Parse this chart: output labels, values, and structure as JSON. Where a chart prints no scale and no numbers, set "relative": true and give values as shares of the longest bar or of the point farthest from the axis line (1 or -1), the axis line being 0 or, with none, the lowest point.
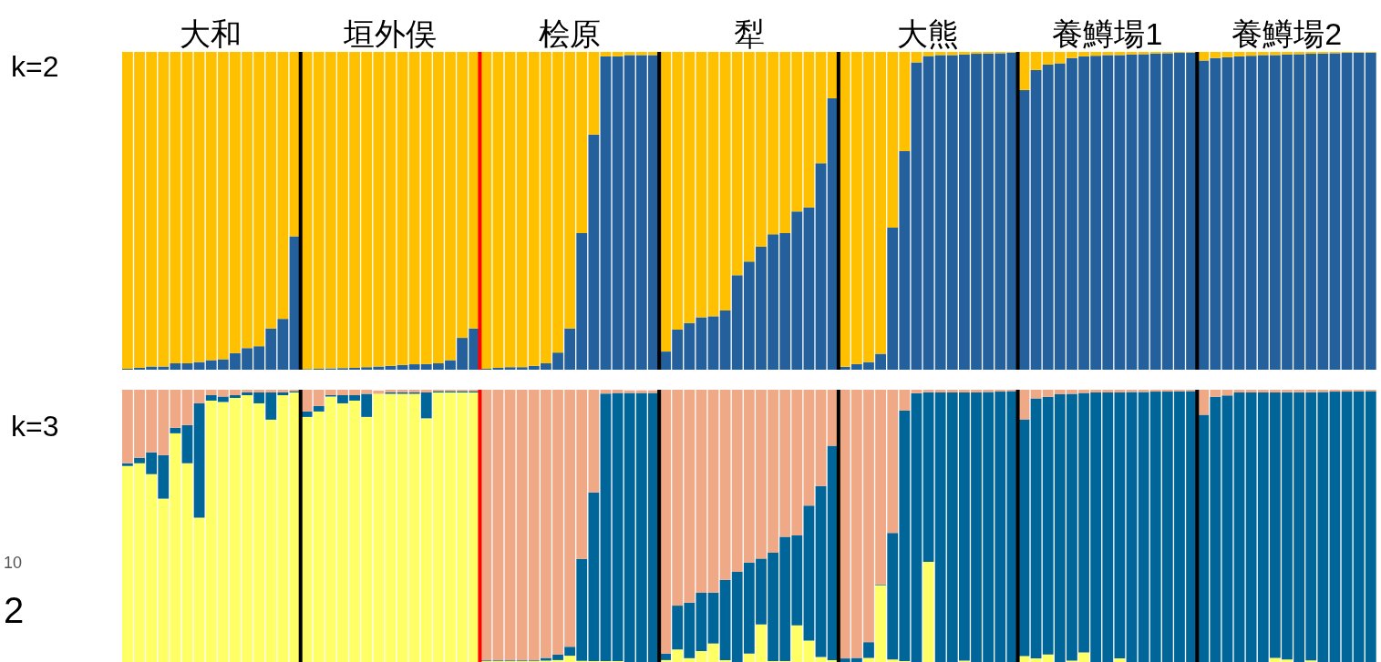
{
  "chart_data": [
    {
      "type": "bar",
      "title": "k=2",
      "stacked": true,
      "relative": true,
      "categories": [
        null,
        null,
        null,
        null,
        null,
        null,
        null,
        "大和",
        null,
        null,
        null,
        null,
        null,
        null,
        null,
        null,
        null,
        null,
        null,
        null,
        null,
        null,
        "垣外俣",
        null,
        null,
        null,
        null,
        null,
        null,
        null,
        null,
        null,
        null,
        null,
        null,
        null,
        null,
        "桧原",
        null,
        null,
        null,
        null,
        null,
        null,
        null,
        null,
        null,
        null,
        null,
        null,
        null,
        null,
        "犁",
        null,
        null,
        null,
        null,
        null,
        null,
        null,
        null,
        null,
        null,
        null,
        null,
        null,
        null,
        "大熊",
        null,
        null,
        null,
        null,
        null,
        null,
        null,
        null,
        null,
        null,
        null,
        null,
        null,
        null,
        "養鱒場1",
        null,
        null,
        null,
        null,
        null,
        null,
        null,
        null,
        null,
        null,
        null,
        null,
        null,
        null,
        "養鱒場2",
        null,
        null,
        null,
        null,
        null,
        null,
        null
      ],
      "series": [
        {
          "color": "#23609c",
          "values": [
            0.003,
            0.006,
            0.01,
            0.01,
            0.02,
            0.02,
            0.024,
            0.03,
            0.033,
            0.052,
            0.068,
            0.074,
            0.13,
            0.16,
            0.42,
            0.002,
            0.003,
            0.004,
            0.005,
            0.006,
            0.008,
            0.01,
            0.012,
            0.015,
            0.017,
            0.018,
            0.02,
            0.03,
            0.1,
            0.13,
            0.003,
            0.006,
            0.008,
            0.008,
            0.012,
            0.02,
            0.054,
            0.13,
            0.43,
            0.74,
            0.986,
            0.986,
            0.99,
            0.99,
            0.99,
            0.057,
            0.126,
            0.147,
            0.165,
            0.168,
            0.186,
            0.297,
            0.34,
            0.387,
            0.426,
            0.43,
            0.498,
            0.511,
            0.65,
            0.854,
            0.009,
            0.018,
            0.024,
            0.05,
            0.447,
            0.688,
            0.967,
            0.987,
            0.99,
            0.99,
            0.992,
            0.994,
            0.995,
            0.996,
            0.998,
            0.88,
            0.943,
            0.96,
            0.964,
            0.981,
            0.986,
            0.988,
            0.99,
            0.99,
            0.992,
            0.993,
            0.995,
            0.996,
            0.997,
            0.998,
            0.973,
            0.981,
            0.983,
            0.986,
            0.988,
            0.99,
            0.99,
            0.992,
            0.993,
            0.994,
            0.995,
            0.996,
            0.997,
            0.998,
            0.998
          ]
        },
        {
          "color": "#ffc000",
          "values": [
            0.997,
            0.994,
            0.99,
            0.99,
            0.98,
            0.98,
            0.976,
            0.97,
            0.967,
            0.948,
            0.932,
            0.926,
            0.87,
            0.84,
            0.58,
            0.998,
            0.997,
            0.996,
            0.995,
            0.994,
            0.992,
            0.99,
            0.988,
            0.985,
            0.983,
            0.982,
            0.98,
            0.97,
            0.9,
            0.87,
            0.997,
            0.994,
            0.992,
            0.992,
            0.988,
            0.98,
            0.946,
            0.87,
            0.57,
            0.26,
            0.014,
            0.014,
            0.01,
            0.01,
            0.01,
            0.943,
            0.874,
            0.853,
            0.835,
            0.832,
            0.814,
            0.703,
            0.66,
            0.613,
            0.574,
            0.57,
            0.502,
            0.489,
            0.35,
            0.146,
            0.991,
            0.982,
            0.976,
            0.95,
            0.553,
            0.312,
            0.033,
            0.013,
            0.01,
            0.01,
            0.008,
            0.006,
            0.005,
            0.004,
            0.002,
            0.12,
            0.057,
            0.04,
            0.036,
            0.019,
            0.014,
            0.012,
            0.01,
            0.01,
            0.008,
            0.007,
            0.005,
            0.004,
            0.003,
            0.002,
            0.027,
            0.019,
            0.017,
            0.014,
            0.012,
            0.01,
            0.01,
            0.008,
            0.007,
            0.006,
            0.005,
            0.004,
            0.003,
            0.002,
            0.002
          ]
        }
      ]
    },
    {
      "type": "bar",
      "title": "k=3",
      "stacked": true,
      "relative": true,
      "annotations": [
        "10",
        "2"
      ],
      "categories": [
        null,
        null,
        null,
        null,
        null,
        null,
        null,
        null,
        null,
        null,
        null,
        null,
        null,
        null,
        null,
        null,
        null,
        null,
        null,
        null,
        null,
        null,
        null,
        null,
        null,
        null,
        null,
        null,
        null,
        null,
        null,
        null,
        null,
        null,
        null,
        null,
        null,
        null,
        null,
        null,
        null,
        null,
        null,
        null,
        null,
        null,
        null,
        null,
        null,
        null,
        null,
        null,
        null,
        null,
        null,
        null,
        null,
        null,
        null,
        null,
        null,
        null,
        null,
        null,
        null,
        null,
        null,
        null,
        null,
        null,
        null,
        null,
        null,
        null,
        null,
        null,
        null,
        null,
        null,
        null,
        null,
        null,
        null,
        null,
        null,
        null,
        null,
        null,
        null,
        null,
        null,
        null,
        null,
        null,
        null,
        null,
        null,
        null,
        null,
        null,
        null,
        null,
        null,
        null,
        null
      ],
      "series": [
        {
          "color": "#ffff66",
          "values": [
            0.72,
            0.73,
            0.69,
            0.6,
            0.84,
            0.73,
            0.53,
            0.96,
            0.955,
            0.97,
            0.98,
            0.95,
            0.89,
            0.98,
            0.99,
            0.9,
            0.92,
            0.975,
            0.95,
            0.96,
            0.9,
            0.985,
            0.985,
            0.985,
            0.985,
            0.895,
            0.99,
            0.99,
            0.99,
            0.99,
            0.003,
            0.003,
            0.003,
            0.003,
            0.003,
            0.005,
            0.007,
            0.023,
            0.004,
            0.003,
            0.003,
            0.003,
            null,
            null,
            null,
            0.007,
            0.046,
            0.014,
            0.04,
            0.068,
            0.007,
            0,
            0.031,
            0.138,
            0.003,
            0.003,
            0.135,
            0.079,
            0.018,
            0.007,
            0,
            0,
            0.015,
            0.282,
            0.009,
            0.003,
            0,
            0.368,
            0,
            0,
            0.005,
            0,
            0,
            0,
            0,
            0.022,
            0.013,
            0.028,
            0,
            0.005,
            0.035,
            0,
            0,
            0.013,
            0,
            0,
            0,
            0,
            0,
            0,
            0,
            0,
            0,
            0,
            0,
            0,
            0.015,
            0.009,
            0,
            0.006,
            0,
            0,
            0,
            0,
            0
          ]
        },
        {
          "color": "#006699",
          "values": [
            0.01,
            0.02,
            0.08,
            0.16,
            0.02,
            0.14,
            0.42,
            0.02,
            0.02,
            0.01,
            0.01,
            0.04,
            0.1,
            0.01,
            0.005,
            0.02,
            0.02,
            0.005,
            0.03,
            0.02,
            0.085,
            null,
            0.005,
            0.005,
            0.005,
            0.095,
            0.005,
            0.005,
            0.005,
            0.005,
            0.003,
            0.003,
            0.003,
            0.003,
            0.003,
            0.01,
            0.02,
            0.033,
            0.375,
            0.62,
            0.983,
            0.985,
            0.988,
            0.988,
            0.988,
            0.024,
            0.161,
            0.204,
            0.214,
            0.187,
            0.295,
            0.331,
            0.334,
            0.242,
            0.398,
            0.457,
            0.33,
            0.495,
            0.628,
            0.787,
            0.013,
            0.015,
            0.058,
            0.003,
            0.465,
            0.92,
            0.987,
            0.623,
            0.99,
            0.99,
            0.985,
            0.99,
            0.992,
            0.993,
            0.995,
            0.869,
            0.955,
            0.946,
            0.983,
            0.98,
            0.953,
            0.99,
            0.99,
            0.977,
            0.992,
            0.992,
            0.993,
            0.993,
            0.994,
            0.995,
            0.908,
            0.974,
            0.979,
            0.99,
            0.99,
            0.99,
            0.975,
            0.982,
            0.991,
            0.985,
            0.992,
            0.993,
            0.993,
            0.994,
            0.995
          ]
        },
        {
          "color": "#f0a986",
          "values": [
            0.27,
            0.25,
            0.23,
            0.24,
            0.14,
            0.13,
            0.05,
            0.02,
            0.025,
            0.02,
            0.01,
            0.01,
            0.01,
            0.01,
            0.005,
            0.08,
            0.06,
            0.02,
            0.02,
            0.02,
            0.015,
            0.012,
            0.01,
            0.01,
            0.01,
            0.01,
            0.005,
            0.005,
            0.005,
            0.005,
            0.994,
            0.994,
            0.994,
            0.994,
            0.994,
            0.985,
            0.973,
            0.944,
            0.621,
            0.377,
            0.014,
            0.012,
            0.01,
            0.01,
            0.01,
            0.969,
            0.793,
            0.782,
            0.746,
            0.745,
            0.698,
            0.669,
            0.635,
            0.62,
            0.599,
            0.54,
            0.535,
            0.426,
            0.354,
            0.206,
            0.987,
            0.985,
            0.927,
            0.715,
            0.526,
            0.077,
            0.013,
            0.009,
            0.01,
            0.01,
            0.01,
            0.01,
            0.008,
            0.007,
            0.005,
            0.109,
            0.032,
            0.026,
            0.017,
            0.015,
            0.012,
            0.01,
            0.01,
            0.01,
            0.008,
            0.008,
            0.007,
            0.007,
            0.006,
            0.005,
            0.092,
            0.026,
            0.021,
            0.01,
            0.01,
            0.01,
            0.01,
            0.009,
            0.009,
            0.009,
            0.008,
            0.007,
            0.007,
            0.006,
            0.005
          ]
        }
      ]
    }
  ]
}
